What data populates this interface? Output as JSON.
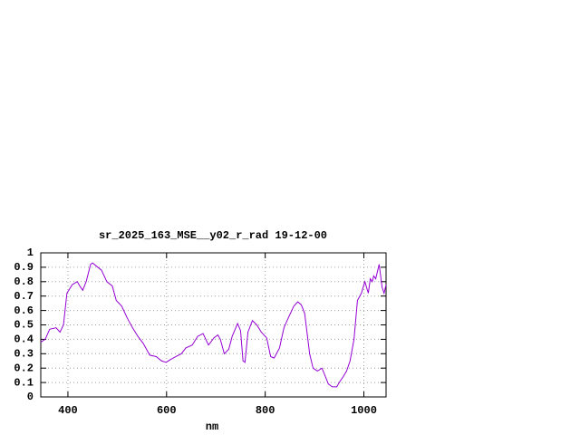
{
  "chart_data": {
    "type": "line",
    "title": "sr_2025_163_MSE__y02_r_rad 19-12-00",
    "xlabel": "nm",
    "xlim": [
      345,
      1045
    ],
    "ylim": [
      0,
      1
    ],
    "xticks": [
      400,
      600,
      800,
      1000
    ],
    "yticks": [
      0,
      0.1,
      0.2,
      0.3,
      0.4,
      0.5,
      0.6,
      0.7,
      0.8,
      0.9,
      1
    ],
    "grid": true,
    "series": [
      {
        "color": "#9400d3",
        "x": [
          345,
          354,
          363,
          376,
          384,
          391,
          398,
          409,
          419,
          424,
          430,
          437,
          446,
          450,
          457,
          468,
          479,
          490,
          498,
          509,
          520,
          531,
          542,
          553,
          566,
          579,
          590,
          599,
          608,
          619,
          630,
          639,
          652,
          663,
          674,
          685,
          696,
          704,
          709,
          717,
          726,
          733,
          744,
          750,
          755,
          759,
          765,
          774,
          783,
          792,
          803,
          811,
          818,
          829,
          838,
          847,
          858,
          866,
          873,
          880,
          890,
          897,
          906,
          915,
          921,
          928,
          936,
          945,
          950,
          958,
          965,
          972,
          980,
          987,
          995,
          1002,
          1009,
          1013,
          1017,
          1020,
          1024,
          1031,
          1037,
          1041,
          1045
        ],
        "values": [
          0.38,
          0.4,
          0.47,
          0.48,
          0.45,
          0.5,
          0.72,
          0.78,
          0.8,
          0.77,
          0.74,
          0.8,
          0.92,
          0.93,
          0.91,
          0.88,
          0.8,
          0.77,
          0.67,
          0.63,
          0.55,
          0.48,
          0.42,
          0.37,
          0.29,
          0.28,
          0.25,
          0.24,
          0.26,
          0.28,
          0.3,
          0.34,
          0.36,
          0.42,
          0.44,
          0.36,
          0.41,
          0.43,
          0.4,
          0.3,
          0.33,
          0.42,
          0.51,
          0.46,
          0.25,
          0.24,
          0.45,
          0.53,
          0.5,
          0.45,
          0.41,
          0.28,
          0.27,
          0.34,
          0.48,
          0.55,
          0.63,
          0.66,
          0.64,
          0.58,
          0.3,
          0.2,
          0.18,
          0.2,
          0.15,
          0.09,
          0.07,
          0.07,
          0.1,
          0.14,
          0.18,
          0.25,
          0.4,
          0.67,
          0.72,
          0.8,
          0.72,
          0.82,
          0.8,
          0.84,
          0.82,
          0.92,
          0.76,
          0.72,
          0.78
        ]
      }
    ]
  }
}
